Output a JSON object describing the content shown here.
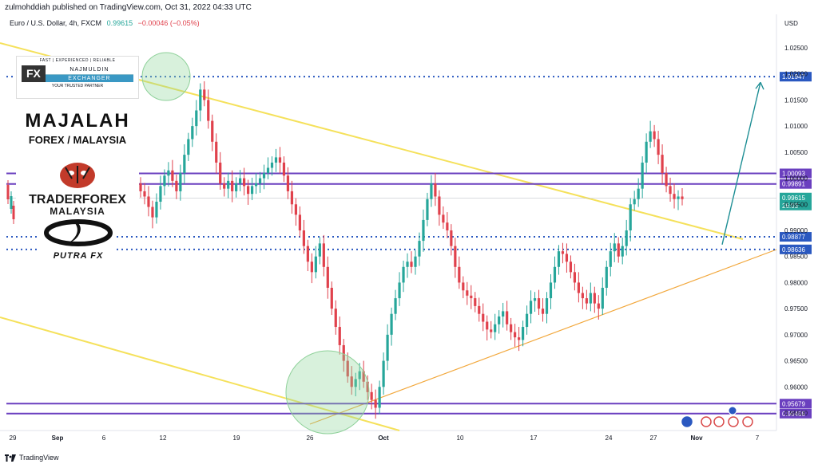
{
  "header": {
    "publisher_line": "zulmohddiah published on TradingView.com, Oct 31, 2022 04:33 UTC"
  },
  "symbol": {
    "name": "Euro / U.S. Dollar, 4h, FXCM",
    "price": "0.99615",
    "change": "−0.00046 (−0.05%)"
  },
  "footer": {
    "brand": "TradingView"
  },
  "logos": {
    "fx_najmuldin": {
      "tagline_top": "FAST | EXPERIENCED | RELIABLE",
      "fx": "FX",
      "name": "NAJMULDIN",
      "sub": "EXCHANGER",
      "tagline_bottom": "YOUR TRUSTED PARTNER"
    },
    "majalah": {
      "line1": "MAJALAH",
      "line2": "FOREX / MALAYSIA"
    },
    "traderforex": {
      "line1": "TRADERFOREX",
      "line2": "MALAYSIA"
    },
    "putra": {
      "text": "PUTRA FX"
    }
  },
  "colors": {
    "up": "#26a69a",
    "down": "#e0414c",
    "trend": "#f5e15b",
    "support": "#f2a73b",
    "level": "#6a3fbf",
    "dotted": "#2a58c0",
    "arrow": "#1f8f95"
  },
  "chart_data": {
    "type": "candlestick",
    "symbol": "Euro / U.S. Dollar",
    "timeframe": "4h",
    "y_axis": {
      "unit": "USD",
      "ticks": [
        "1.02500",
        "1.02000",
        "1.01500",
        "1.01000",
        "1.00500",
        "1.00000",
        "0.99500",
        "0.99000",
        "0.98500",
        "0.98000",
        "0.97500",
        "0.97000",
        "0.96500",
        "0.96000",
        "0.95500"
      ],
      "range": [
        0.952,
        1.029
      ]
    },
    "x_axis": {
      "ticks": [
        "29",
        "Sep",
        "6",
        "12",
        "19",
        "26",
        "Oct",
        "10",
        "17",
        "24",
        "27",
        "Nov",
        "7"
      ]
    },
    "levels": [
      {
        "value": 1.01947,
        "label": "1.01947",
        "style": "dotted"
      },
      {
        "value": 1.00093,
        "label": "1.00093",
        "style": "solid"
      },
      {
        "value": 0.99891,
        "label": "0.99891",
        "style": "solid"
      },
      {
        "value": 0.98877,
        "label": "0.98877",
        "style": "dotted"
      },
      {
        "value": 0.98636,
        "label": "0.98636",
        "style": "dotted"
      },
      {
        "value": 0.95679,
        "label": "0.95679",
        "style": "solid"
      },
      {
        "value": 0.95488,
        "label": "0.95488",
        "style": "solid"
      }
    ],
    "current": {
      "value": 0.99615,
      "label": "0.99615",
      "timer": "26:03"
    },
    "closes": [
      0.9975,
      0.9965,
      0.9945,
      0.9925,
      0.9955,
      0.9985,
      1.0005,
      1.0015,
      0.9995,
      0.9975,
      1.001,
      1.0045,
      1.0075,
      1.01,
      1.013,
      1.017,
      1.015,
      1.011,
      1.007,
      1.003,
      0.999,
      0.998,
      0.9995,
      0.9975,
      0.999,
      1.0,
      0.9985,
      0.997,
      0.9985,
      0.999,
      1.0,
      1.001,
      1.002,
      1.003,
      1.004,
      1.003,
      1.0005,
      0.9975,
      0.995,
      0.993,
      0.99,
      0.987,
      0.984,
      0.982,
      0.985,
      0.9875,
      0.983,
      0.979,
      0.975,
      0.9715,
      0.968,
      0.965,
      0.962,
      0.96,
      0.9615,
      0.963,
      0.961,
      0.959,
      0.9575,
      0.956,
      0.96,
      0.965,
      0.97,
      0.974,
      0.977,
      0.98,
      0.983,
      0.984,
      0.983,
      0.985,
      0.988,
      0.992,
      0.996,
      0.999,
      0.9965,
      0.993,
      0.9915,
      0.99,
      0.987,
      0.983,
      0.98,
      0.9785,
      0.9775,
      0.977,
      0.9755,
      0.974,
      0.9725,
      0.971,
      0.9705,
      0.972,
      0.9735,
      0.9745,
      0.972,
      0.9705,
      0.9695,
      0.969,
      0.9715,
      0.974,
      0.9765,
      0.977,
      0.975,
      0.974,
      0.977,
      0.98,
      0.983,
      0.986,
      0.9855,
      0.984,
      0.982,
      0.98,
      0.978,
      0.977,
      0.976,
      0.978,
      0.976,
      0.975,
      0.979,
      0.983,
      0.986,
      0.9875,
      0.985,
      0.987,
      0.99,
      0.995,
      0.996,
      0.998,
      1.003,
      1.007,
      1.009,
      1.0075,
      1.0045,
      1.001,
      0.9985,
      0.997,
      0.996,
      0.9965,
      0.996
    ],
    "arrow": {
      "from_value": 0.9885,
      "to_value": 1.019
    }
  }
}
